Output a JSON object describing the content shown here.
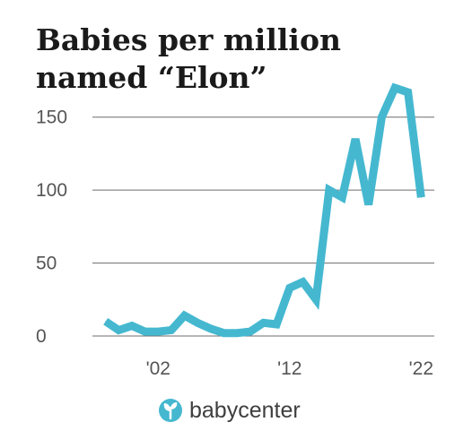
{
  "chart_data": {
    "type": "line",
    "title": "Babies per million named “Elon”",
    "xlabel": "",
    "ylabel": "",
    "ylim": [
      0,
      175
    ],
    "xlim": [
      1997,
      2023
    ],
    "yticks": [
      0,
      50,
      100,
      150
    ],
    "ytick_labels": [
      "0",
      "50",
      "100",
      "150"
    ],
    "xticks": [
      2002,
      2012,
      2022
    ],
    "xtick_labels": [
      "'02",
      "'12",
      "'22"
    ],
    "grid": true,
    "color": "#45b8d0",
    "series": [
      {
        "name": "",
        "x": [
          1998,
          1999,
          2000,
          2001,
          2002,
          2003,
          2004,
          2005,
          2006,
          2007,
          2008,
          2009,
          2010,
          2011,
          2012,
          2013,
          2014,
          2015,
          2016,
          2017,
          2018,
          2019,
          2020,
          2021,
          2022
        ],
        "y": [
          10,
          4,
          7,
          3,
          3,
          4,
          14,
          9,
          5,
          2,
          2,
          3,
          9,
          8,
          33,
          37,
          25,
          100,
          95,
          135,
          90,
          150,
          170,
          167,
          95
        ]
      }
    ]
  },
  "brand": {
    "name": "babycenter",
    "logo_icon": "babycenter-leaf-icon"
  }
}
